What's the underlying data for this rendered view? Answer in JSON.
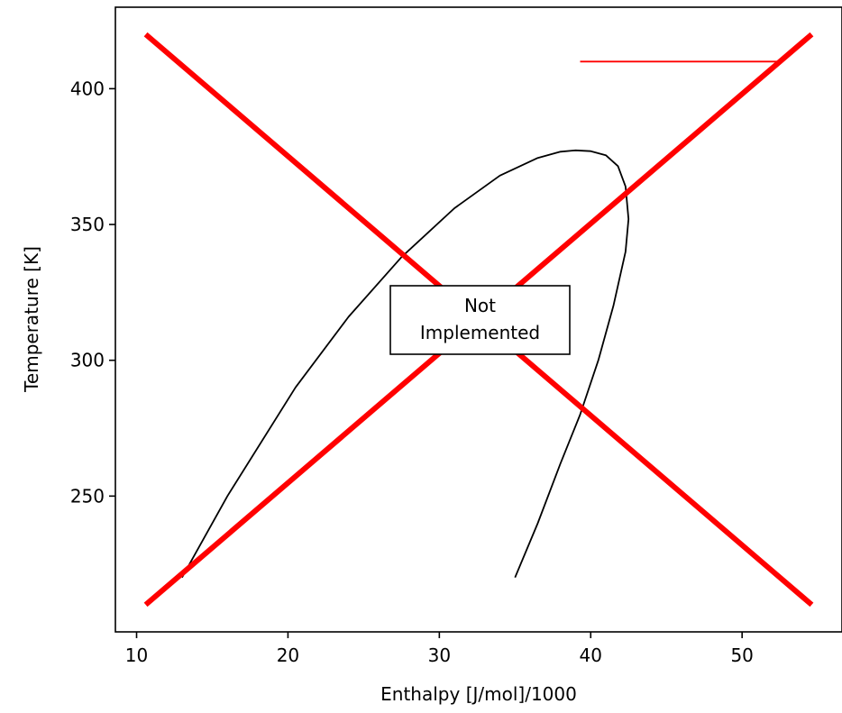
{
  "chart_data": {
    "type": "line",
    "title": "",
    "xlabel": "Enthalpy [J/mol]/1000",
    "ylabel": "Temperature [K]",
    "xlim": [
      8.6,
      56.6
    ],
    "ylim": [
      200,
      430
    ],
    "xticks": [
      10,
      20,
      30,
      40,
      50
    ],
    "yticks": [
      250,
      300,
      350,
      400
    ],
    "grid": false,
    "annotation": {
      "lines": [
        "Not",
        "Implemented"
      ],
      "x": 32.7,
      "y": 315.5
    },
    "colors": {
      "curve": "#000000",
      "cross": "#ff0000",
      "frame": "#000000"
    },
    "series": [
      {
        "role": "saturation-envelope",
        "style": "thin-black",
        "points": [
          [
            13.0,
            220
          ],
          [
            16.0,
            250
          ],
          [
            20.5,
            290
          ],
          [
            24.0,
            316
          ],
          [
            27.5,
            338
          ],
          [
            31.0,
            356
          ],
          [
            34.0,
            368
          ],
          [
            36.5,
            374.5
          ],
          [
            38.0,
            376.8
          ],
          [
            39.0,
            377.3
          ],
          [
            40.0,
            377.0
          ],
          [
            41.0,
            375.5
          ],
          [
            41.8,
            371.5
          ],
          [
            42.3,
            364
          ],
          [
            42.5,
            352
          ],
          [
            42.3,
            340
          ],
          [
            41.5,
            320
          ],
          [
            40.5,
            300
          ],
          [
            39.3,
            280
          ],
          [
            38.0,
            262
          ],
          [
            36.5,
            240
          ],
          [
            35.0,
            220
          ]
        ]
      },
      {
        "role": "cross-diagonal-1",
        "style": "thick-red",
        "points": [
          [
            10.6,
            420
          ],
          [
            54.6,
            210
          ]
        ]
      },
      {
        "role": "cross-diagonal-2",
        "style": "thick-red",
        "points": [
          [
            10.6,
            210
          ],
          [
            54.6,
            420
          ]
        ]
      },
      {
        "role": "red-segment",
        "style": "thin-red",
        "points": [
          [
            39.3,
            410
          ],
          [
            52.5,
            410
          ]
        ]
      }
    ]
  }
}
